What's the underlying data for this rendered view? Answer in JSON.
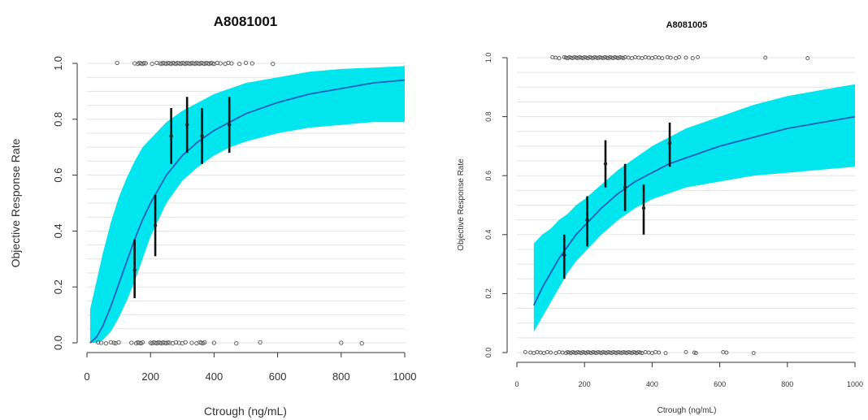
{
  "chart_data": [
    {
      "type": "scatter",
      "title": "A8081001",
      "xlabel": "Ctrough (ng/mL)",
      "ylabel": "Objective Response Rate",
      "xlim": [
        0,
        1000
      ],
      "ylim": [
        0,
        1
      ],
      "xticks": [
        {
          "v": 0,
          "label": "0"
        },
        {
          "v": 200,
          "label": "200"
        },
        {
          "v": 400,
          "label": "400"
        },
        {
          "v": 600,
          "label": "600"
        },
        {
          "v": 800,
          "label": "800"
        },
        {
          "v": 1000,
          "label": "1000"
        }
      ],
      "yticks": [
        {
          "v": 0,
          "label": "0.0"
        },
        {
          "v": 0.2,
          "label": "0.2"
        },
        {
          "v": 0.4,
          "label": "0.4"
        },
        {
          "v": 0.6,
          "label": "0.6"
        },
        {
          "v": 0.8,
          "label": "0.8"
        },
        {
          "v": 1.0,
          "label": "1.0"
        }
      ],
      "grid": true,
      "ribbon_color": "#00e5ee",
      "line_color": "#1f5fb8",
      "curve": {
        "x": [
          10,
          30,
          50,
          75,
          100,
          125,
          150,
          175,
          200,
          225,
          250,
          300,
          350,
          400,
          450,
          500,
          600,
          700,
          800,
          900,
          1000
        ],
        "y": [
          0.0,
          0.02,
          0.06,
          0.13,
          0.21,
          0.29,
          0.37,
          0.44,
          0.5,
          0.55,
          0.6,
          0.67,
          0.72,
          0.76,
          0.79,
          0.82,
          0.86,
          0.89,
          0.91,
          0.93,
          0.94
        ],
        "lower": [
          0.0,
          0.0,
          0.01,
          0.04,
          0.09,
          0.15,
          0.22,
          0.3,
          0.38,
          0.44,
          0.5,
          0.58,
          0.63,
          0.67,
          0.7,
          0.72,
          0.75,
          0.77,
          0.78,
          0.79,
          0.79
        ],
        "upper": [
          0.12,
          0.22,
          0.32,
          0.43,
          0.52,
          0.59,
          0.65,
          0.7,
          0.73,
          0.76,
          0.79,
          0.83,
          0.86,
          0.89,
          0.91,
          0.93,
          0.95,
          0.97,
          0.98,
          0.985,
          0.99
        ]
      },
      "observed": [
        {
          "x": 150,
          "y": 0.26,
          "lower": 0.16,
          "upper": 0.37
        },
        {
          "x": 215,
          "y": 0.42,
          "lower": 0.31,
          "upper": 0.53
        },
        {
          "x": 265,
          "y": 0.74,
          "lower": 0.64,
          "upper": 0.84
        },
        {
          "x": 315,
          "y": 0.78,
          "lower": 0.68,
          "upper": 0.88
        },
        {
          "x": 362,
          "y": 0.74,
          "lower": 0.64,
          "upper": 0.84
        },
        {
          "x": 448,
          "y": 0.78,
          "lower": 0.68,
          "upper": 0.88
        }
      ],
      "points_top": [
        95,
        150,
        160,
        165,
        170,
        175,
        180,
        185,
        205,
        220,
        230,
        235,
        240,
        245,
        250,
        255,
        260,
        265,
        270,
        275,
        280,
        285,
        290,
        295,
        300,
        305,
        310,
        315,
        320,
        325,
        330,
        335,
        340,
        345,
        350,
        355,
        360,
        365,
        370,
        375,
        380,
        385,
        390,
        395,
        400,
        410,
        420,
        435,
        445,
        455,
        480,
        500,
        520,
        585
      ],
      "points_bottom": [
        35,
        45,
        60,
        75,
        85,
        90,
        100,
        140,
        155,
        160,
        165,
        170,
        175,
        200,
        205,
        210,
        215,
        220,
        225,
        230,
        235,
        240,
        245,
        250,
        255,
        260,
        270,
        280,
        290,
        300,
        310,
        330,
        345,
        355,
        360,
        365,
        370,
        400,
        470,
        545,
        800,
        865
      ]
    },
    {
      "type": "scatter",
      "title": "A8081005",
      "xlabel": "Ctrough (ng/mL)",
      "ylabel": "Objective Response Rate",
      "xlim": [
        0,
        1000
      ],
      "ylim": [
        0,
        1
      ],
      "xticks": [
        {
          "v": 0,
          "label": "0"
        },
        {
          "v": 200,
          "label": "200"
        },
        {
          "v": 400,
          "label": "400"
        },
        {
          "v": 600,
          "label": "600"
        },
        {
          "v": 800,
          "label": "800"
        },
        {
          "v": 1000,
          "label": "1000"
        }
      ],
      "yticks": [
        {
          "v": 0,
          "label": "0.0"
        },
        {
          "v": 0.2,
          "label": "0.2"
        },
        {
          "v": 0.4,
          "label": "0.4"
        },
        {
          "v": 0.6,
          "label": "0.6"
        },
        {
          "v": 0.8,
          "label": "0.8"
        },
        {
          "v": 1.0,
          "label": "1.0"
        }
      ],
      "grid": true,
      "ribbon_color": "#00e5ee",
      "line_color": "#1f5fb8",
      "curve": {
        "x": [
          50,
          75,
          100,
          125,
          150,
          175,
          200,
          250,
          300,
          350,
          400,
          450,
          500,
          600,
          700,
          800,
          900,
          1000
        ],
        "y": [
          0.16,
          0.22,
          0.27,
          0.32,
          0.36,
          0.4,
          0.43,
          0.49,
          0.54,
          0.58,
          0.61,
          0.64,
          0.66,
          0.7,
          0.73,
          0.76,
          0.78,
          0.8
        ],
        "lower": [
          0.07,
          0.12,
          0.17,
          0.22,
          0.27,
          0.31,
          0.34,
          0.4,
          0.45,
          0.49,
          0.52,
          0.54,
          0.56,
          0.58,
          0.6,
          0.61,
          0.62,
          0.63
        ],
        "upper": [
          0.37,
          0.4,
          0.42,
          0.45,
          0.47,
          0.5,
          0.52,
          0.57,
          0.62,
          0.66,
          0.7,
          0.73,
          0.76,
          0.8,
          0.84,
          0.87,
          0.89,
          0.91
        ]
      },
      "observed": [
        {
          "x": 140,
          "y": 0.33,
          "lower": 0.25,
          "upper": 0.4
        },
        {
          "x": 208,
          "y": 0.45,
          "lower": 0.36,
          "upper": 0.53
        },
        {
          "x": 262,
          "y": 0.64,
          "lower": 0.56,
          "upper": 0.72
        },
        {
          "x": 320,
          "y": 0.56,
          "lower": 0.48,
          "upper": 0.64
        },
        {
          "x": 375,
          "y": 0.49,
          "lower": 0.4,
          "upper": 0.57
        },
        {
          "x": 452,
          "y": 0.71,
          "lower": 0.63,
          "upper": 0.78
        }
      ],
      "points_top": [
        105,
        115,
        125,
        140,
        145,
        150,
        155,
        160,
        165,
        170,
        175,
        180,
        185,
        190,
        195,
        200,
        205,
        210,
        215,
        220,
        225,
        230,
        235,
        240,
        245,
        250,
        255,
        260,
        265,
        270,
        275,
        280,
        285,
        290,
        295,
        300,
        305,
        310,
        315,
        320,
        330,
        340,
        350,
        360,
        370,
        380,
        390,
        400,
        410,
        420,
        430,
        445,
        455,
        470,
        480,
        500,
        520,
        535,
        735,
        860
      ],
      "points_bottom": [
        25,
        40,
        50,
        60,
        70,
        80,
        90,
        100,
        115,
        125,
        135,
        145,
        150,
        155,
        160,
        165,
        170,
        175,
        180,
        185,
        190,
        195,
        200,
        205,
        210,
        215,
        220,
        225,
        230,
        235,
        240,
        245,
        250,
        255,
        260,
        265,
        270,
        275,
        280,
        285,
        290,
        295,
        300,
        305,
        310,
        315,
        320,
        325,
        330,
        335,
        340,
        345,
        350,
        355,
        360,
        365,
        370,
        380,
        390,
        400,
        410,
        420,
        440,
        500,
        525,
        530,
        610,
        620,
        700
      ]
    }
  ]
}
